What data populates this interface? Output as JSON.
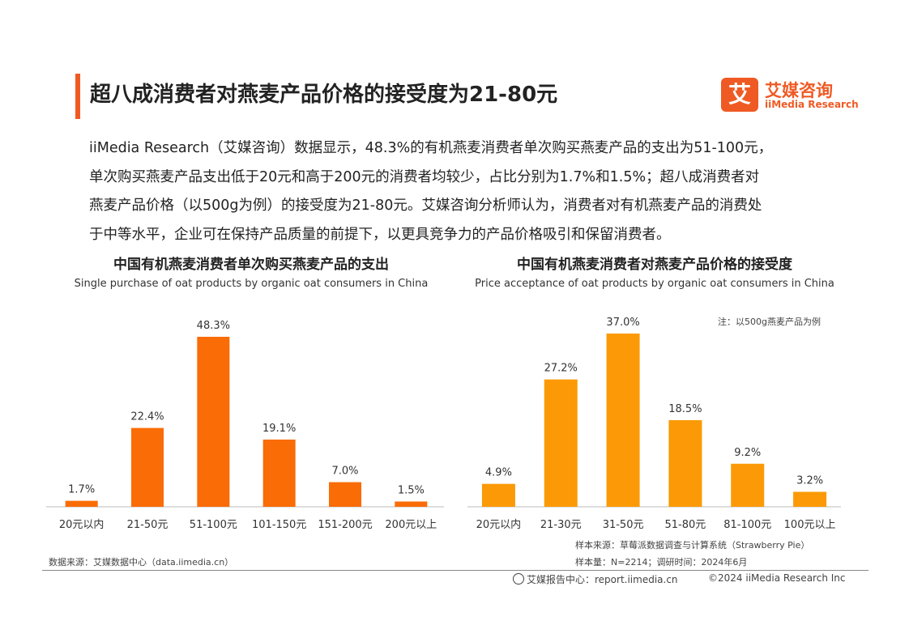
{
  "header": {
    "title": "超八成消费者对燕麦产品价格的接受度为21-80元",
    "logo_mark": "艾",
    "logo_cn": "艾媒咨询",
    "logo_en": "iiMedia Research"
  },
  "paragraph": [
    "iiMedia Research（艾媒咨询）数据显示，48.3%的有机燕麦消费者单次购买燕麦产品的支出为51-100元，",
    "单次购买燕麦产品支出低于20元和高于200元的消费者均较少，占比分别为1.7%和1.5%；超八成消费者对",
    "燕麦产品价格（以500g为例）的接受度为21-80元。艾媒咨询分析师认为，消费者对有机燕麦产品的消费处",
    "于中等水平，企业可在保持产品质量的前提下，以更具竞争力的产品价格吸引和保留消费者。"
  ],
  "chart_data": [
    {
      "type": "bar",
      "title": "中国有机燕麦消费者单次购买燕麦产品的支出",
      "subtitle": "Single purchase of oat products by organic oat consumers in China",
      "categories": [
        "20元以内",
        "21-50元",
        "51-100元",
        "101-150元",
        "151-200元",
        "200元以上"
      ],
      "values": [
        1.7,
        22.4,
        48.3,
        19.1,
        7.0,
        1.5
      ],
      "labels": [
        "1.7%",
        "22.4%",
        "48.3%",
        "19.1%",
        "7.0%",
        "1.5%"
      ],
      "color": "#f96c06",
      "ylim": [
        0,
        48.3
      ],
      "grid": false,
      "source": "数据来源：艾媒数据中心（data.iimedia.cn）"
    },
    {
      "type": "bar",
      "title": "中国有机燕麦消费者对燕麦产品价格的接受度",
      "subtitle": "Price acceptance of oat products by organic oat consumers in China",
      "categories": [
        "20元以内",
        "21-30元",
        "31-50元",
        "51-80元",
        "81-100元",
        "100元以上"
      ],
      "values": [
        4.9,
        27.2,
        37.0,
        18.5,
        9.2,
        3.2
      ],
      "labels": [
        "4.9%",
        "27.2%",
        "37.0%",
        "18.5%",
        "9.2%",
        "3.2%"
      ],
      "color": "#fb9a06",
      "ylim": [
        0,
        37.0
      ],
      "grid": false,
      "note": "注：以500g燕麦产品为例",
      "sample_source": "样本来源：草莓派数据调查与计算系统（Strawberry Pie）",
      "sample_size": "样本量：N=2214；调研时间：2024年6月"
    }
  ],
  "footer": {
    "center_label": "艾媒报告中心：report.iimedia.cn",
    "copyright": "©2024  iiMedia Research Inc"
  }
}
